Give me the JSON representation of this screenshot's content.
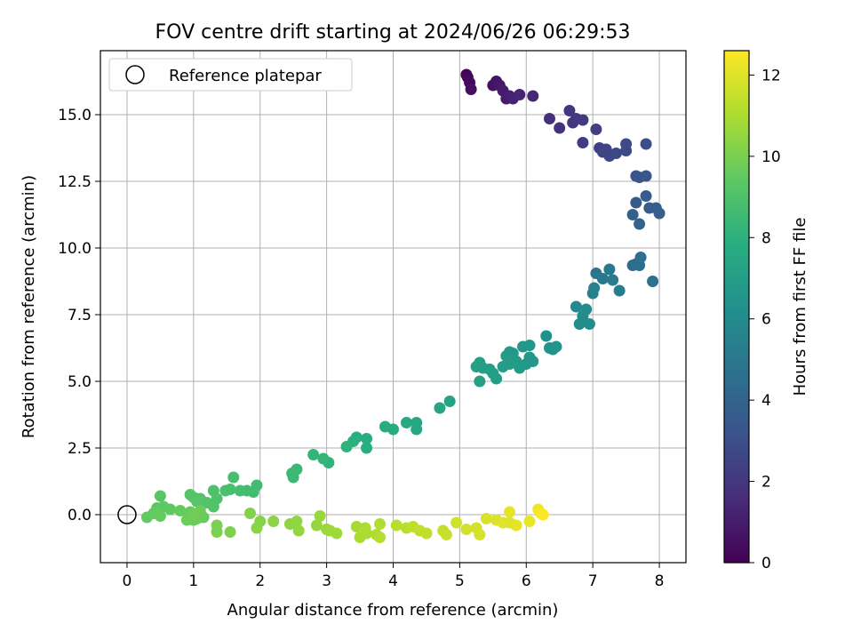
{
  "chart_data": {
    "type": "scatter",
    "title": "FOV centre drift starting at 2024/06/26 06:29:53",
    "xlabel": "Angular distance from reference (arcmin)",
    "ylabel": "Rotation from reference (arcmin)",
    "xlim": [
      -0.4,
      8.4
    ],
    "ylim": [
      -1.8,
      17.4
    ],
    "xticks": [
      0,
      1,
      2,
      3,
      4,
      5,
      6,
      7,
      8
    ],
    "xtick_labels": [
      "0",
      "1",
      "2",
      "3",
      "4",
      "5",
      "6",
      "7",
      "8"
    ],
    "yticks": [
      0,
      2.5,
      5,
      7.5,
      10,
      12.5,
      15
    ],
    "ytick_labels": [
      "0.0",
      "2.5",
      "5.0",
      "7.5",
      "10.0",
      "12.5",
      "15.0"
    ],
    "grid": true,
    "legend": {
      "position": "upper-left",
      "entries": [
        "Reference platepar"
      ]
    },
    "reference_point": {
      "x": 0,
      "y": 0
    },
    "colorbar": {
      "label": "Hours from first FF file",
      "colormap": "viridis",
      "range": [
        0,
        12.6
      ],
      "ticks": [
        0,
        2,
        4,
        6,
        8,
        10,
        12
      ],
      "tick_labels": [
        "0",
        "2",
        "4",
        "6",
        "8",
        "10",
        "12"
      ]
    },
    "points": [
      [
        5.1,
        16.5,
        0.1
      ],
      [
        5.12,
        16.4,
        0.2
      ],
      [
        5.15,
        16.2,
        0.3
      ],
      [
        5.17,
        15.95,
        0.45
      ],
      [
        5.5,
        16.1,
        0.6
      ],
      [
        5.55,
        16.25,
        0.7
      ],
      [
        5.6,
        16.1,
        0.8
      ],
      [
        5.65,
        15.9,
        0.9
      ],
      [
        5.7,
        15.6,
        1.0
      ],
      [
        5.75,
        15.7,
        1.1
      ],
      [
        5.8,
        15.6,
        1.2
      ],
      [
        5.9,
        15.75,
        1.3
      ],
      [
        6.1,
        15.7,
        1.4
      ],
      [
        6.35,
        14.85,
        1.7
      ],
      [
        6.5,
        14.5,
        1.8
      ],
      [
        6.65,
        15.15,
        1.9
      ],
      [
        6.7,
        14.7,
        2.0
      ],
      [
        6.75,
        14.85,
        2.1
      ],
      [
        6.85,
        14.8,
        2.15
      ],
      [
        6.85,
        13.95,
        2.25
      ],
      [
        7.05,
        14.45,
        2.3
      ],
      [
        7.1,
        13.75,
        2.4
      ],
      [
        7.15,
        13.6,
        2.5
      ],
      [
        7.2,
        13.7,
        2.55
      ],
      [
        7.25,
        13.45,
        2.6
      ],
      [
        7.35,
        13.55,
        2.7
      ],
      [
        7.5,
        13.65,
        2.8
      ],
      [
        7.5,
        13.9,
        2.85
      ],
      [
        7.8,
        13.9,
        2.95
      ],
      [
        7.65,
        12.7,
        3.2
      ],
      [
        7.7,
        12.65,
        3.3
      ],
      [
        7.8,
        12.7,
        3.4
      ],
      [
        7.65,
        11.7,
        3.5
      ],
      [
        7.8,
        11.95,
        3.6
      ],
      [
        7.85,
        11.5,
        3.7
      ],
      [
        7.95,
        11.5,
        3.75
      ],
      [
        8.0,
        11.3,
        3.8
      ],
      [
        7.6,
        11.25,
        3.9
      ],
      [
        7.7,
        10.9,
        4.0
      ],
      [
        7.6,
        9.35,
        4.4
      ],
      [
        7.65,
        9.4,
        4.5
      ],
      [
        7.7,
        9.35,
        4.55
      ],
      [
        7.72,
        9.65,
        4.6
      ],
      [
        7.9,
        8.75,
        4.7
      ],
      [
        7.05,
        9.05,
        4.9
      ],
      [
        7.15,
        8.85,
        5.0
      ],
      [
        7.25,
        9.2,
        5.1
      ],
      [
        7.3,
        8.8,
        5.2
      ],
      [
        7.4,
        8.4,
        5.3
      ],
      [
        7.0,
        8.3,
        5.5
      ],
      [
        7.02,
        8.5,
        5.6
      ],
      [
        6.75,
        7.8,
        5.9
      ],
      [
        6.85,
        7.45,
        6.0
      ],
      [
        6.8,
        7.15,
        6.05
      ],
      [
        6.9,
        7.7,
        6.1
      ],
      [
        6.95,
        7.15,
        6.15
      ],
      [
        6.3,
        6.7,
        6.3
      ],
      [
        6.35,
        6.25,
        6.4
      ],
      [
        6.4,
        6.2,
        6.45
      ],
      [
        6.45,
        6.3,
        6.5
      ],
      [
        5.95,
        6.3,
        6.6
      ],
      [
        6.05,
        6.35,
        6.6
      ],
      [
        6.0,
        5.65,
        6.65
      ],
      [
        6.05,
        5.9,
        6.7
      ],
      [
        6.1,
        5.75,
        6.7
      ],
      [
        5.75,
        6.1,
        6.75
      ],
      [
        5.8,
        6.05,
        6.75
      ],
      [
        5.85,
        5.75,
        6.8
      ],
      [
        5.9,
        5.5,
        6.85
      ],
      [
        5.7,
        5.95,
        6.85
      ],
      [
        5.65,
        5.55,
        6.9
      ],
      [
        5.75,
        5.65,
        6.9
      ],
      [
        5.5,
        5.3,
        6.95
      ],
      [
        5.55,
        5.1,
        7.0
      ],
      [
        5.45,
        5.45,
        7.0
      ],
      [
        5.35,
        5.5,
        7.05
      ],
      [
        5.3,
        5.7,
        7.05
      ],
      [
        5.25,
        5.55,
        7.1
      ],
      [
        5.3,
        5.0,
        7.1
      ],
      [
        4.85,
        4.25,
        7.3
      ],
      [
        4.7,
        4.0,
        7.35
      ],
      [
        4.35,
        3.45,
        7.5
      ],
      [
        4.35,
        3.2,
        7.55
      ],
      [
        4.2,
        3.45,
        7.6
      ],
      [
        4.0,
        3.2,
        7.7
      ],
      [
        3.88,
        3.3,
        7.75
      ],
      [
        3.6,
        2.85,
        7.85
      ],
      [
        3.6,
        2.5,
        7.9
      ],
      [
        3.45,
        2.9,
        7.95
      ],
      [
        3.4,
        2.75,
        8.0
      ],
      [
        3.3,
        2.55,
        8.05
      ],
      [
        3.03,
        1.95,
        8.15
      ],
      [
        2.95,
        2.1,
        8.2
      ],
      [
        2.8,
        2.25,
        8.25
      ],
      [
        2.55,
        1.7,
        8.4
      ],
      [
        2.5,
        1.4,
        8.45
      ],
      [
        2.48,
        1.55,
        8.5
      ],
      [
        1.95,
        1.1,
        8.6
      ],
      [
        1.9,
        0.85,
        8.65
      ],
      [
        1.8,
        0.9,
        8.7
      ],
      [
        1.7,
        0.9,
        8.75
      ],
      [
        1.6,
        1.4,
        8.8
      ],
      [
        1.55,
        0.95,
        8.85
      ],
      [
        1.48,
        0.9,
        8.9
      ],
      [
        1.3,
        0.9,
        8.95
      ],
      [
        1.35,
        0.6,
        9.0
      ],
      [
        1.3,
        0.3,
        9.05
      ],
      [
        1.2,
        0.45,
        9.1
      ],
      [
        1.1,
        0.6,
        9.1
      ],
      [
        1.0,
        0.65,
        9.15
      ],
      [
        0.95,
        0.75,
        9.2
      ],
      [
        1.05,
        0.5,
        9.2
      ],
      [
        0.5,
        0.7,
        9.3
      ],
      [
        0.45,
        0.25,
        9.35
      ],
      [
        0.55,
        0.3,
        9.4
      ],
      [
        0.65,
        0.2,
        9.45
      ],
      [
        0.4,
        0.05,
        9.45
      ],
      [
        0.3,
        -0.1,
        9.5
      ],
      [
        0.45,
        0.1,
        9.5
      ],
      [
        0.5,
        -0.05,
        9.55
      ],
      [
        0.8,
        0.15,
        9.55
      ],
      [
        0.95,
        0.1,
        9.6
      ],
      [
        1.0,
        -0.2,
        9.6
      ],
      [
        1.15,
        -0.1,
        9.65
      ],
      [
        1.05,
        -0.15,
        9.7
      ],
      [
        1.1,
        0.15,
        9.7
      ],
      [
        0.9,
        -0.2,
        9.75
      ],
      [
        1.0,
        0.0,
        9.8
      ],
      [
        1.35,
        -0.4,
        10.0
      ],
      [
        1.35,
        -0.65,
        10.05
      ],
      [
        1.55,
        -0.65,
        10.1
      ],
      [
        1.85,
        0.05,
        10.15
      ],
      [
        2.0,
        -0.25,
        10.25
      ],
      [
        1.95,
        -0.5,
        10.3
      ],
      [
        2.2,
        -0.25,
        10.35
      ],
      [
        2.45,
        -0.35,
        10.4
      ],
      [
        2.55,
        -0.25,
        10.45
      ],
      [
        2.58,
        -0.6,
        10.5
      ],
      [
        2.85,
        -0.4,
        10.55
      ],
      [
        2.9,
        -0.05,
        10.6
      ],
      [
        3.0,
        -0.55,
        10.65
      ],
      [
        3.05,
        -0.6,
        10.7
      ],
      [
        3.15,
        -0.7,
        10.75
      ],
      [
        3.45,
        -0.45,
        10.9
      ],
      [
        3.5,
        -0.85,
        10.95
      ],
      [
        3.58,
        -0.5,
        11.0
      ],
      [
        3.6,
        -0.7,
        11.0
      ],
      [
        3.75,
        -0.75,
        11.1
      ],
      [
        3.8,
        -0.35,
        11.1
      ],
      [
        3.8,
        -0.85,
        11.15
      ],
      [
        4.05,
        -0.4,
        11.25
      ],
      [
        4.2,
        -0.5,
        11.3
      ],
      [
        4.3,
        -0.45,
        11.35
      ],
      [
        4.4,
        -0.6,
        11.4
      ],
      [
        4.5,
        -0.7,
        11.4
      ],
      [
        4.75,
        -0.6,
        11.5
      ],
      [
        4.8,
        -0.75,
        11.55
      ],
      [
        4.95,
        -0.3,
        11.7
      ],
      [
        5.1,
        -0.55,
        11.75
      ],
      [
        5.25,
        -0.5,
        11.8
      ],
      [
        5.3,
        -0.75,
        11.85
      ],
      [
        5.4,
        -0.15,
        11.9
      ],
      [
        5.55,
        -0.2,
        11.95
      ],
      [
        5.65,
        -0.3,
        12.0
      ],
      [
        5.75,
        -0.3,
        12.05
      ],
      [
        5.75,
        0.1,
        12.1
      ],
      [
        5.85,
        -0.4,
        12.15
      ],
      [
        6.05,
        -0.25,
        12.25
      ],
      [
        6.18,
        0.2,
        12.35
      ],
      [
        6.22,
        0.05,
        12.45
      ],
      [
        6.25,
        0.0,
        12.55
      ]
    ]
  }
}
